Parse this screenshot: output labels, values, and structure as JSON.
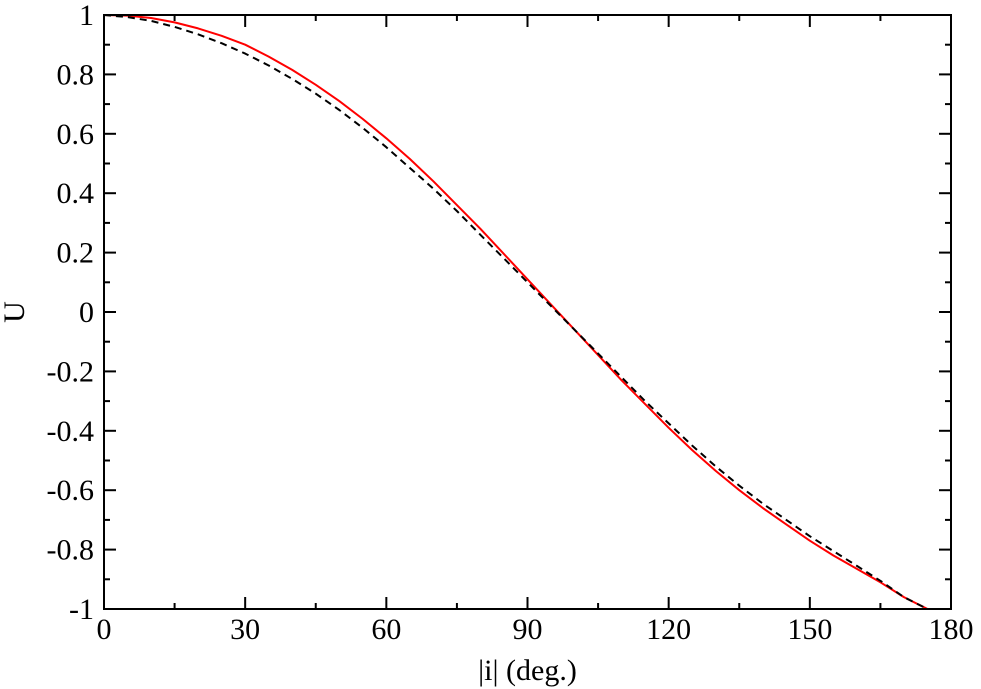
{
  "chart_data": {
    "type": "line",
    "xlabel": "|i| (deg.)",
    "ylabel": "U",
    "xlim": [
      0,
      180
    ],
    "ylim": [
      -1,
      1
    ],
    "xticks": [
      0,
      30,
      60,
      90,
      120,
      150,
      180
    ],
    "xtick_labels": [
      "0",
      "30",
      "60",
      "90",
      "120",
      "150",
      "180"
    ],
    "yticks": [
      -1,
      -0.8,
      -0.6,
      -0.4,
      -0.2,
      0,
      0.2,
      0.4,
      0.6,
      0.8,
      1
    ],
    "ytick_labels": [
      "-1",
      "-0.8",
      "-0.6",
      "-0.4",
      "-0.2",
      "0",
      "0.2",
      "0.4",
      "0.6",
      "0.8",
      "1"
    ],
    "grid": false,
    "series": [
      {
        "color": "#ff0000",
        "line_style": "solid",
        "x": [
          0,
          5,
          10,
          15,
          20,
          25,
          30,
          35,
          40,
          45,
          50,
          55,
          60,
          65,
          70,
          75,
          80,
          85,
          90,
          95,
          100,
          105,
          110,
          115,
          120,
          125,
          130,
          135,
          140,
          145,
          150,
          155,
          160,
          165,
          170,
          175
        ],
        "y": [
          1.0,
          0.998,
          0.99,
          0.975,
          0.955,
          0.93,
          0.9,
          0.86,
          0.815,
          0.765,
          0.71,
          0.65,
          0.585,
          0.515,
          0.44,
          0.36,
          0.28,
          0.195,
          0.11,
          0.025,
          -0.06,
          -0.145,
          -0.23,
          -0.31,
          -0.39,
          -0.465,
          -0.535,
          -0.6,
          -0.66,
          -0.715,
          -0.77,
          -0.82,
          -0.865,
          -0.91,
          -0.96,
          -1.0
        ]
      },
      {
        "color": "#000000",
        "line_style": "dashed",
        "x": [
          0,
          5,
          10,
          15,
          20,
          25,
          30,
          35,
          40,
          45,
          50,
          55,
          60,
          65,
          70,
          75,
          80,
          85,
          90,
          95,
          100,
          105,
          110,
          115,
          120,
          125,
          130,
          135,
          140,
          145,
          150,
          155,
          160,
          165,
          170,
          175
        ],
        "y": [
          1.0,
          0.993,
          0.98,
          0.96,
          0.935,
          0.905,
          0.87,
          0.83,
          0.785,
          0.735,
          0.68,
          0.62,
          0.555,
          0.485,
          0.415,
          0.34,
          0.26,
          0.18,
          0.1,
          0.02,
          -0.06,
          -0.14,
          -0.22,
          -0.3,
          -0.375,
          -0.45,
          -0.52,
          -0.585,
          -0.645,
          -0.7,
          -0.755,
          -0.805,
          -0.855,
          -0.905,
          -0.96,
          -1.0
        ]
      }
    ]
  }
}
